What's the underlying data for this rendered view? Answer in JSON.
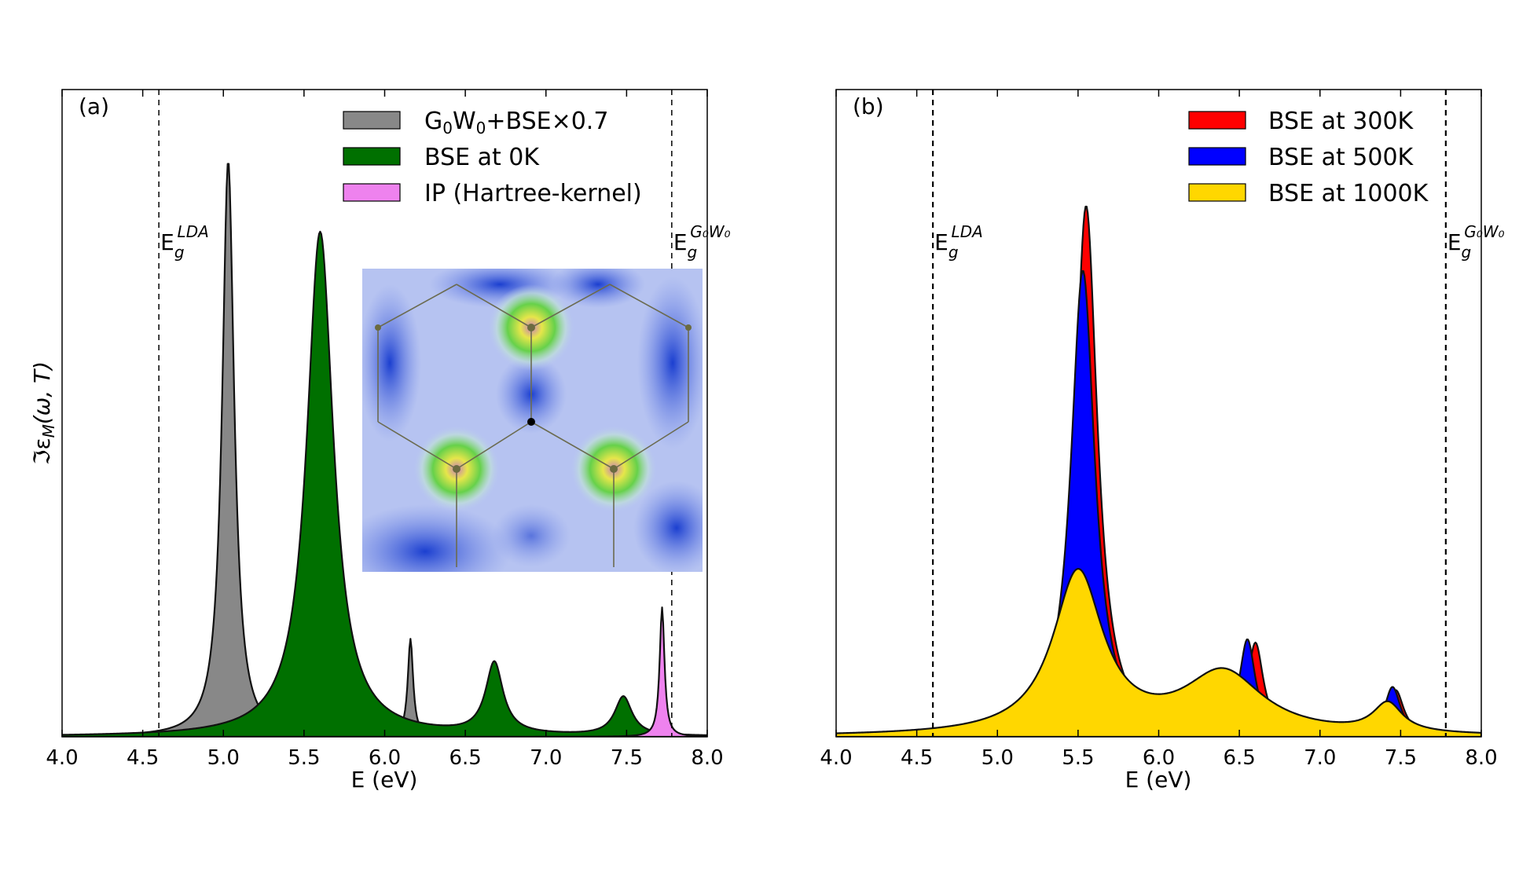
{
  "chart_data": [
    {
      "type": "area",
      "panel_label": "(a)",
      "xlabel": "E (eV)",
      "ylabel": "ℑε",
      "ylabel_sub": "M",
      "ylabel_suffix": "(ω, T)",
      "xlim": [
        4.0,
        8.0
      ],
      "ylim": [
        0,
        1.0
      ],
      "y_ticks_shown": false,
      "x_ticks": [
        "4.0",
        "4.5",
        "5.0",
        "5.5",
        "6.0",
        "6.5",
        "7.0",
        "7.5",
        "8.0"
      ],
      "legend_position": "top-right",
      "vlines": [
        {
          "x": 4.6,
          "label": "E",
          "sub": "g",
          "sup": "LDA"
        },
        {
          "x": 7.78,
          "label": "E",
          "sub": "g",
          "sup": "G₀W₀"
        }
      ],
      "inset": {
        "type": "image",
        "description_shown": false
      },
      "series": [
        {
          "name_main": "G",
          "name_parts": [
            "G",
            "0",
            "W",
            "0",
            "+BSE×0.7"
          ],
          "color": "#888888",
          "peaks": [
            {
              "x": 5.03,
              "height": 0.89,
              "width": 0.045
            },
            {
              "x": 6.16,
              "height": 0.15,
              "width": 0.02
            }
          ]
        },
        {
          "name": "BSE at 0K",
          "color": "#007000",
          "peaks": [
            {
              "x": 5.6,
              "height": 0.78,
              "width": 0.1
            },
            {
              "x": 6.68,
              "height": 0.11,
              "width": 0.065
            },
            {
              "x": 7.48,
              "height": 0.06,
              "width": 0.065
            }
          ]
        },
        {
          "name": "IP (Hartree-kernel)",
          "color": "#ee82ee",
          "peaks": [
            {
              "x": 7.72,
              "height": 0.2,
              "width": 0.018
            }
          ]
        }
      ]
    },
    {
      "type": "area",
      "panel_label": "(b)",
      "xlabel": "E (eV)",
      "xlim": [
        4.0,
        8.0
      ],
      "ylim": [
        0,
        1.0
      ],
      "y_ticks_shown": false,
      "x_ticks": [
        "4.0",
        "4.5",
        "5.0",
        "5.5",
        "6.0",
        "6.5",
        "7.0",
        "7.5",
        "8.0"
      ],
      "legend_position": "top-right",
      "vlines": [
        {
          "x": 4.6,
          "label": "E",
          "sub": "g",
          "sup": "LDA"
        },
        {
          "x": 7.78,
          "label": "E",
          "sub": "g",
          "sup": "G₀W₀"
        }
      ],
      "series": [
        {
          "name": "BSE at 300K",
          "color": "#ff0000",
          "peaks": [
            {
              "x": 5.55,
              "height": 0.82,
              "width": 0.085
            },
            {
              "x": 6.6,
              "height": 0.14,
              "width": 0.06
            },
            {
              "x": 7.47,
              "height": 0.07,
              "width": 0.06
            }
          ]
        },
        {
          "name": "BSE at 500K",
          "color": "#0000ff",
          "peaks": [
            {
              "x": 5.53,
              "height": 0.72,
              "width": 0.09
            },
            {
              "x": 6.55,
              "height": 0.145,
              "width": 0.06
            },
            {
              "x": 7.45,
              "height": 0.075,
              "width": 0.06
            }
          ]
        },
        {
          "name": "BSE at 1000K",
          "color": "#ffd700",
          "peaks": [
            {
              "x": 5.5,
              "height": 0.25,
              "width": 0.19
            },
            {
              "x": 6.4,
              "height": 0.095,
              "width": 0.3
            },
            {
              "x": 7.42,
              "height": 0.045,
              "width": 0.11
            }
          ]
        }
      ]
    }
  ]
}
